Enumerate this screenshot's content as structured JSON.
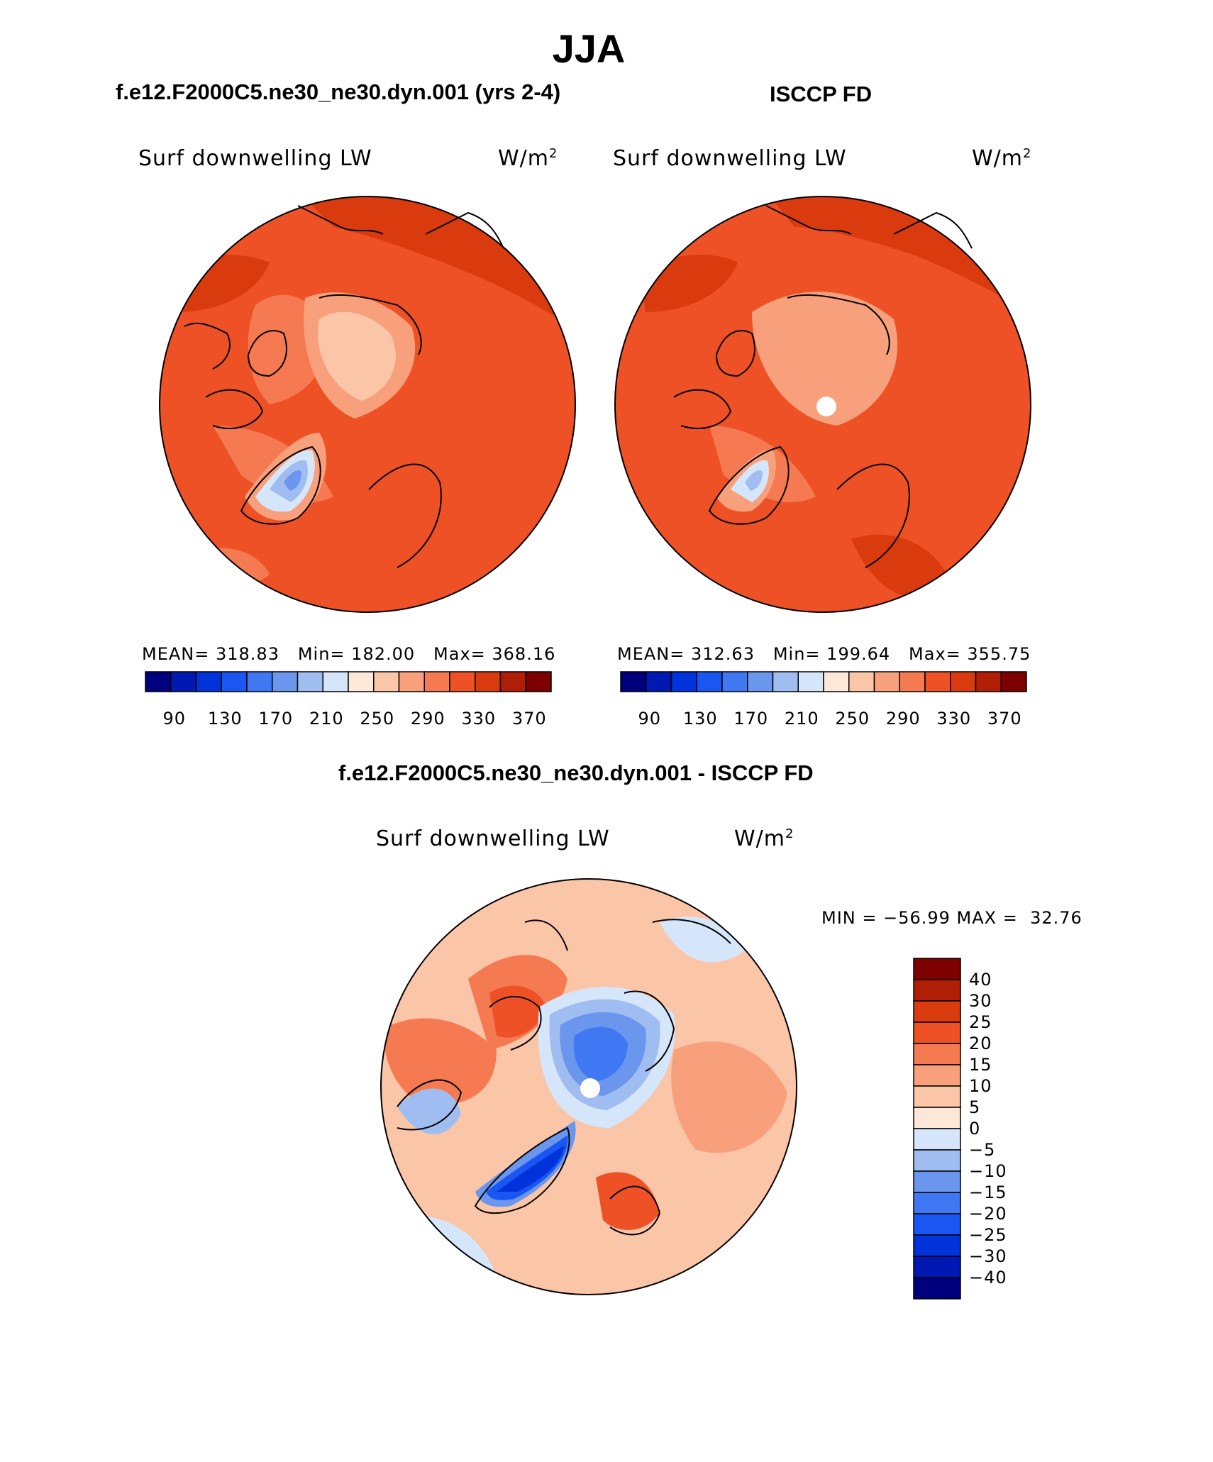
{
  "title": "JJA",
  "panels": [
    {
      "title": "f.e12.F2000C5.ne30_ne30.dyn.001 (yrs 2-4)",
      "label_left": "Surf downwelling LW",
      "label_right": "W/m",
      "label_right_sup": "2",
      "stats": "MEAN= 318.83   Min= 182.00   Max= 368.16",
      "colorbar_ticks": [
        "90",
        "130",
        "170",
        "210",
        "250",
        "290",
        "330",
        "370"
      ]
    },
    {
      "title": "ISCCP FD",
      "label_left": "Surf downwelling LW",
      "label_right": "W/m",
      "label_right_sup": "2",
      "stats": "MEAN= 312.63   Min= 199.64   Max= 355.75",
      "colorbar_ticks": [
        "90",
        "130",
        "170",
        "210",
        "250",
        "290",
        "330",
        "370"
      ]
    }
  ],
  "diff_panel": {
    "title": "f.e12.F2000C5.ne30_ne30.dyn.001 - ISCCP FD",
    "label_left": "Surf downwelling LW",
    "label_right": "W/m",
    "label_right_sup": "2",
    "stats": "MIN = −56.99 MAX =  32.76",
    "colorbar_ticks": [
      "40",
      "30",
      "25",
      "20",
      "15",
      "10",
      "5",
      "0",
      "−5",
      "−10",
      "−15",
      "−20",
      "−25",
      "−30",
      "−40"
    ]
  },
  "colors": {
    "abs_scale": [
      "#00007f",
      "#0019b2",
      "#0033d9",
      "#1a56f2",
      "#3f78f2",
      "#6b96ee",
      "#a0bdf2",
      "#d6e6fa",
      "#fde7d6",
      "#fbc5a8",
      "#f8a07c",
      "#f57a52",
      "#ee5125",
      "#d93a0e",
      "#b01e06",
      "#7f0000"
    ],
    "diff_scale": [
      "#7f0000",
      "#b01e06",
      "#d93a0e",
      "#ee5125",
      "#f57a52",
      "#f8a07c",
      "#fbc5a8",
      "#fde7d6",
      "#d6e6fa",
      "#a0bdf2",
      "#6b96ee",
      "#3f78f2",
      "#1a56f2",
      "#0033d9",
      "#0019b2",
      "#00007f"
    ]
  }
}
